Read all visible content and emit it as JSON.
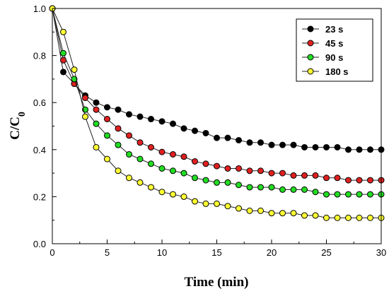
{
  "chart_data": {
    "type": "line",
    "title": "",
    "xlabel": "Time (min)",
    "ylabel_main": "C/C",
    "ylabel_sub": "0",
    "xlim": [
      0,
      30
    ],
    "ylim": [
      0,
      1.0
    ],
    "xticks": [
      0,
      5,
      10,
      15,
      20,
      25,
      30
    ],
    "xtick_labels": [
      "0",
      "5",
      "10",
      "15",
      "20",
      "25",
      "30"
    ],
    "yticks": [
      0.0,
      0.2,
      0.4,
      0.6,
      0.8,
      1.0
    ],
    "ytick_labels": [
      "0.0",
      "0.2",
      "0.4",
      "0.6",
      "0.8",
      "1.0"
    ],
    "grid": false,
    "legend_position": "top-right",
    "x": [
      0,
      1,
      2,
      3,
      4,
      5,
      6,
      7,
      8,
      9,
      10,
      11,
      12,
      13,
      14,
      15,
      16,
      17,
      18,
      19,
      20,
      21,
      22,
      23,
      24,
      25,
      26,
      27,
      28,
      29,
      30
    ],
    "series": [
      {
        "name": "23 s",
        "color": "#000000",
        "values": [
          1.0,
          0.73,
          0.68,
          0.63,
          0.6,
          0.58,
          0.57,
          0.55,
          0.54,
          0.53,
          0.52,
          0.51,
          0.49,
          0.48,
          0.47,
          0.45,
          0.45,
          0.44,
          0.43,
          0.43,
          0.42,
          0.42,
          0.42,
          0.41,
          0.41,
          0.41,
          0.41,
          0.4,
          0.4,
          0.4,
          0.4
        ]
      },
      {
        "name": "45 s",
        "color": "#e02020",
        "values": [
          1.0,
          0.78,
          0.68,
          0.62,
          0.57,
          0.53,
          0.49,
          0.46,
          0.43,
          0.41,
          0.39,
          0.38,
          0.37,
          0.35,
          0.34,
          0.33,
          0.32,
          0.32,
          0.31,
          0.31,
          0.3,
          0.3,
          0.29,
          0.29,
          0.29,
          0.28,
          0.28,
          0.27,
          0.27,
          0.27,
          0.27
        ]
      },
      {
        "name": "90 s",
        "color": "#22dd22",
        "values": [
          1.0,
          0.81,
          0.7,
          0.57,
          0.51,
          0.46,
          0.42,
          0.38,
          0.36,
          0.34,
          0.32,
          0.31,
          0.3,
          0.28,
          0.27,
          0.26,
          0.26,
          0.25,
          0.24,
          0.24,
          0.24,
          0.23,
          0.23,
          0.23,
          0.22,
          0.21,
          0.21,
          0.21,
          0.21,
          0.21,
          0.21
        ]
      },
      {
        "name": "180 s",
        "color": "#ffff33",
        "values": [
          1.0,
          0.9,
          0.74,
          0.54,
          0.41,
          0.36,
          0.31,
          0.28,
          0.26,
          0.24,
          0.22,
          0.21,
          0.2,
          0.18,
          0.17,
          0.17,
          0.16,
          0.15,
          0.14,
          0.14,
          0.13,
          0.13,
          0.13,
          0.12,
          0.12,
          0.11,
          0.11,
          0.11,
          0.11,
          0.11,
          0.11
        ]
      }
    ]
  }
}
